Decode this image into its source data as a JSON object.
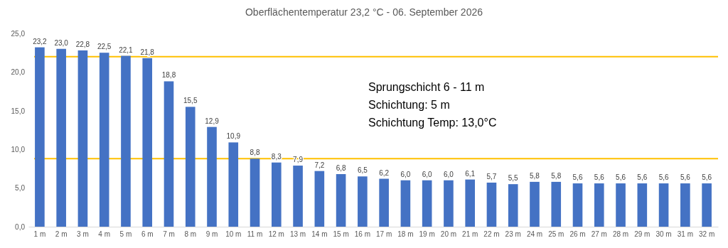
{
  "chart_data": {
    "type": "bar",
    "title": "Oberflächentemperatur 23,2 °C - 06. September 2026",
    "categories": [
      "1 m",
      "2 m",
      "3 m",
      "4 m",
      "5 m",
      "6 m",
      "7 m",
      "8 m",
      "9 m",
      "10 m",
      "11 m",
      "12 m",
      "13 m",
      "14 m",
      "15 m",
      "16 m",
      "17 m",
      "18 m",
      "19 m",
      "20 m",
      "21 m",
      "22 m",
      "23 m",
      "24 m",
      "25 m",
      "26 m",
      "27 m",
      "28 m",
      "29 m",
      "30 m",
      "31 m",
      "32 m"
    ],
    "values": [
      23.2,
      23.0,
      22.8,
      22.5,
      22.1,
      21.8,
      18.8,
      15.5,
      12.9,
      10.9,
      8.8,
      8.3,
      7.9,
      7.2,
      6.8,
      6.5,
      6.2,
      6.0,
      6.0,
      6.0,
      6.1,
      5.7,
      5.5,
      5.8,
      5.8,
      5.6,
      5.6,
      5.6,
      5.6,
      5.6,
      5.6,
      5.6
    ],
    "value_labels": [
      "23,2",
      "23,0",
      "22,8",
      "22,5",
      "22,1",
      "21,8",
      "18,8",
      "15,5",
      "12,9",
      "10,9",
      "8,8",
      "8,3",
      "7,9",
      "7,2",
      "6,8",
      "6,5",
      "6,2",
      "6,0",
      "6,0",
      "6,0",
      "6,1",
      "5,7",
      "5,5",
      "5,8",
      "5,8",
      "5,6",
      "5,6",
      "5,6",
      "5,6",
      "5,6",
      "5,6",
      "5,6"
    ],
    "color": "#4472c4",
    "ylim": [
      0,
      25
    ],
    "yticks": [
      {
        "value": 0,
        "label": "0,0"
      },
      {
        "value": 5,
        "label": "5,0"
      },
      {
        "value": 10,
        "label": "10,0"
      },
      {
        "value": 15,
        "label": "15,0"
      },
      {
        "value": 20,
        "label": "20,0"
      },
      {
        "value": 25,
        "label": "25,0"
      }
    ],
    "ref_lines": [
      {
        "axis": "y",
        "value": 22,
        "color": "#ffc000"
      },
      {
        "axis": "y",
        "value": 8.8,
        "color": "#ffc000"
      }
    ],
    "annotations": [
      "Sprungschicht 6 - 11 m",
      "Schichtung: 5 m",
      "Schichtung Temp: 13,0°C"
    ],
    "grid": false
  }
}
